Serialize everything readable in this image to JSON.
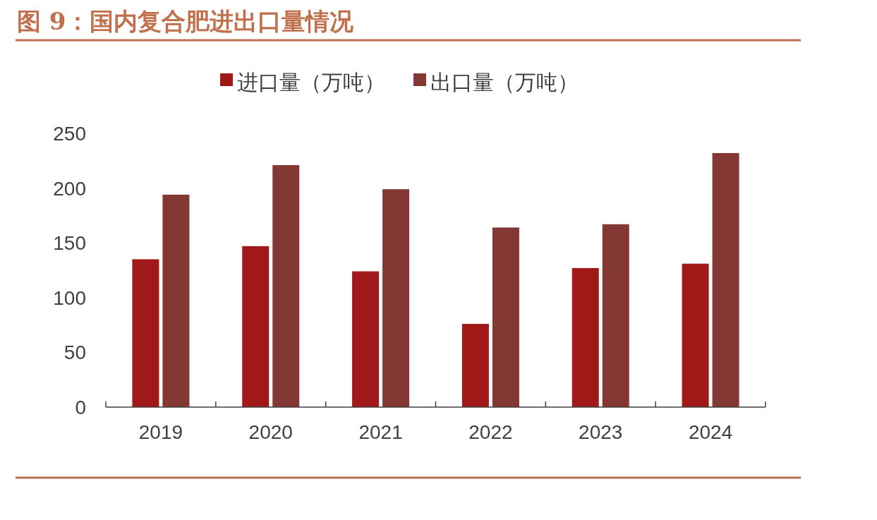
{
  "chart_data": {
    "type": "bar",
    "title": "图 9：国内复合肥进出口量情况",
    "categories": [
      "2019",
      "2020",
      "2021",
      "2022",
      "2023",
      "2024"
    ],
    "series": [
      {
        "name": "进口量（万吨）",
        "color": "#a01818",
        "values": [
          135,
          147,
          124,
          76,
          127,
          131
        ]
      },
      {
        "name": "出口量（万吨）",
        "color": "#843834",
        "values": [
          194,
          221,
          199,
          164,
          167,
          232
        ]
      }
    ],
    "ylim": [
      0,
      250
    ],
    "yticks": [
      0,
      50,
      100,
      150,
      200,
      250
    ],
    "legend": "top"
  }
}
